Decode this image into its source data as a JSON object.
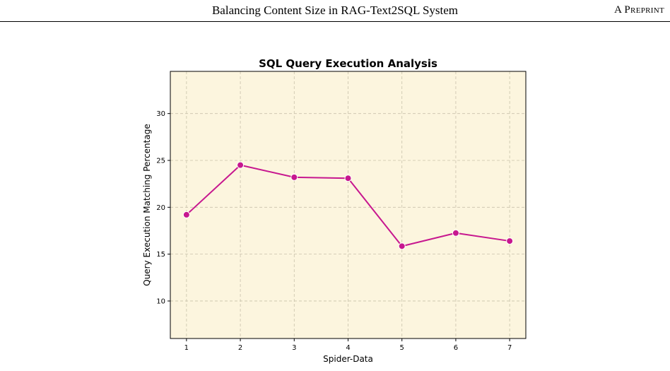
{
  "header": {
    "title": "Balancing Content Size in RAG-Text2SQL System",
    "badge": "A Preprint"
  },
  "colors": {
    "plot_background": "#fcf5de",
    "line": "#c7178f",
    "grid": "#c9c2ab"
  },
  "chart_data": {
    "type": "line",
    "title": "SQL Query Execution Analysis",
    "xlabel": "Spider-Data",
    "ylabel": "Query Execution Matching Percentage",
    "x": [
      1,
      2,
      3,
      4,
      5,
      6,
      7
    ],
    "xticks": [
      "1",
      "2",
      "3",
      "4",
      "5",
      "6",
      "7"
    ],
    "xlim": [
      0.7,
      7.3
    ],
    "yticks": [
      10,
      15,
      20,
      25,
      30
    ],
    "ylim": [
      6,
      34.5
    ],
    "grid": true,
    "series": [
      {
        "values": [
          19.2,
          24.5,
          23.2,
          23.1,
          15.85,
          17.25,
          16.4
        ]
      }
    ]
  }
}
